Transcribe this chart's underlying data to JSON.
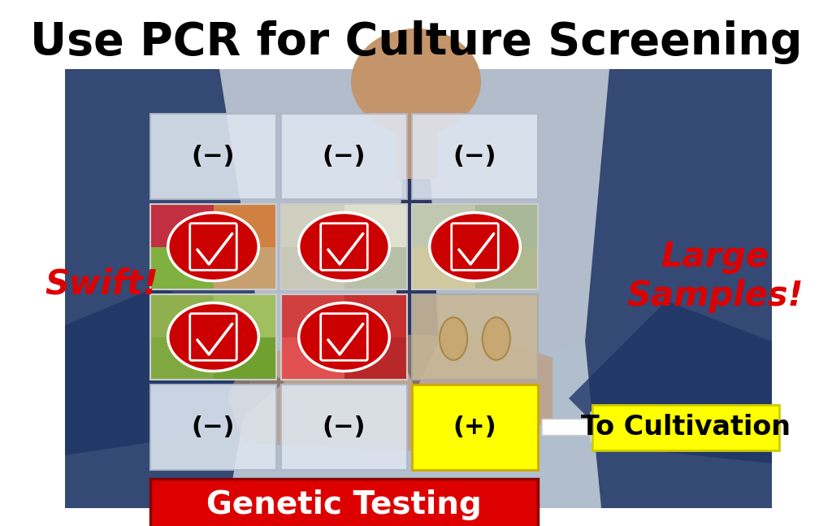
{
  "title": "Use PCR for Culture Screening",
  "title_fontsize": 40,
  "title_fontweight": "bold",
  "title_color": "#000000",
  "bg_color": "#ffffff",
  "figure_width": 10.24,
  "figure_height": 6.47,
  "dpi": 100,
  "neg_label": "(−)",
  "pos_label": "(+)",
  "swift_text": "Swift!",
  "swift_color": "#dd0000",
  "swift_fontsize": 30,
  "swift_fontweight": "bold",
  "large_text": "Large\nSamples!",
  "large_color": "#dd0000",
  "large_fontsize": 30,
  "large_fontweight": "bold",
  "genetic_text": "Genetic Testing",
  "genetic_bg": "#dd0000",
  "genetic_fg": "#ffffff",
  "genetic_fontsize": 28,
  "genetic_fontweight": "bold",
  "cultivation_text": "To Cultivation",
  "cultivation_bg": "#ffff00",
  "cultivation_fg": "#000000",
  "cultivation_fontsize": 24,
  "cultivation_fontweight": "bold",
  "pos_bg": "#ffff00",
  "pos_fg": "#000000",
  "neg_bg": "#e8eef5",
  "neg_fg": "#000000",
  "red_circle_color": "#cc0000",
  "check_fg": "#ffffff",
  "cell_border_color": "#aaaaaa",
  "person_suit_left": "#2a4070",
  "person_suit_right": "#2a4070",
  "person_shirt": "#a8b8cc",
  "person_skin": "#c4956a",
  "person_bg": "#6080a8"
}
